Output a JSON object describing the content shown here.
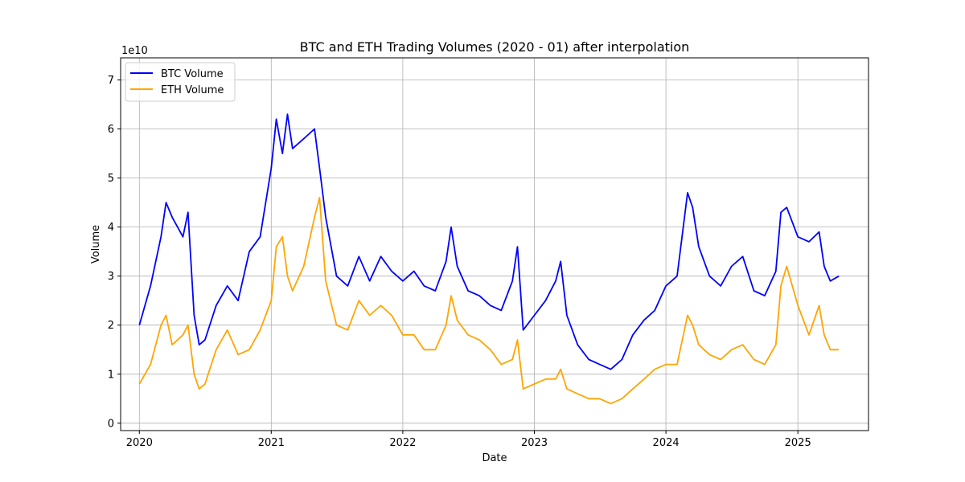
{
  "chart_data": {
    "type": "line",
    "title": "BTC and ETH Trading Volumes (2020 - 01) after interpolation",
    "xlabel": "Date",
    "ylabel": "Volume",
    "y_scale_label": "1e10",
    "x_range": [
      "2019-11-10",
      "2025-07-16"
    ],
    "ylim": [
      -0.15,
      7.45
    ],
    "y_units": "1e10",
    "x_ticks": [
      {
        "date": "2020-01-01",
        "label": "2020"
      },
      {
        "date": "2021-01-01",
        "label": "2021"
      },
      {
        "date": "2022-01-01",
        "label": "2022"
      },
      {
        "date": "2023-01-01",
        "label": "2023"
      },
      {
        "date": "2024-01-01",
        "label": "2024"
      },
      {
        "date": "2025-01-01",
        "label": "2025"
      }
    ],
    "y_ticks": [
      {
        "value": 0,
        "label": "0"
      },
      {
        "value": 1,
        "label": "1"
      },
      {
        "value": 2,
        "label": "2"
      },
      {
        "value": 3,
        "label": "3"
      },
      {
        "value": 4,
        "label": "4"
      },
      {
        "value": 5,
        "label": "5"
      },
      {
        "value": 6,
        "label": "6"
      },
      {
        "value": 7,
        "label": "7"
      }
    ],
    "grid": true,
    "legend_position": "top-left",
    "series": [
      {
        "name": "BTC Volume",
        "color": "#0000ff",
        "x": [
          "2020-01-01",
          "2020-02-01",
          "2020-03-01",
          "2020-03-15",
          "2020-04-01",
          "2020-05-01",
          "2020-05-15",
          "2020-06-01",
          "2020-06-15",
          "2020-07-01",
          "2020-08-01",
          "2020-09-01",
          "2020-10-01",
          "2020-11-01",
          "2020-12-01",
          "2021-01-01",
          "2021-01-15",
          "2021-02-01",
          "2021-02-15",
          "2021-03-01",
          "2021-04-01",
          "2021-05-01",
          "2021-05-15",
          "2021-06-01",
          "2021-07-01",
          "2021-08-01",
          "2021-09-01",
          "2021-10-01",
          "2021-11-01",
          "2021-12-01",
          "2022-01-01",
          "2022-02-01",
          "2022-03-01",
          "2022-04-01",
          "2022-05-01",
          "2022-05-15",
          "2022-06-01",
          "2022-07-01",
          "2022-08-01",
          "2022-09-01",
          "2022-10-01",
          "2022-11-01",
          "2022-11-15",
          "2022-12-01",
          "2023-01-01",
          "2023-02-01",
          "2023-03-01",
          "2023-03-15",
          "2023-04-01",
          "2023-05-01",
          "2023-06-01",
          "2023-07-01",
          "2023-08-01",
          "2023-09-01",
          "2023-10-01",
          "2023-11-01",
          "2023-12-01",
          "2024-01-01",
          "2024-02-01",
          "2024-03-01",
          "2024-03-15",
          "2024-04-01",
          "2024-05-01",
          "2024-06-01",
          "2024-07-01",
          "2024-08-01",
          "2024-09-01",
          "2024-10-01",
          "2024-11-01",
          "2024-11-15",
          "2024-12-01",
          "2025-01-01",
          "2025-02-01",
          "2025-03-01",
          "2025-03-15",
          "2025-04-01",
          "2025-04-25"
        ],
        "values": [
          2.0,
          2.8,
          3.8,
          4.5,
          4.2,
          3.8,
          4.3,
          2.2,
          1.6,
          1.7,
          2.4,
          2.8,
          2.5,
          3.5,
          3.8,
          5.2,
          6.2,
          5.5,
          6.3,
          5.6,
          5.8,
          6.0,
          5.2,
          4.2,
          3.0,
          2.8,
          3.4,
          2.9,
          3.4,
          3.1,
          2.9,
          3.1,
          2.8,
          2.7,
          3.3,
          4.0,
          3.2,
          2.7,
          2.6,
          2.4,
          2.3,
          2.9,
          3.6,
          1.9,
          2.2,
          2.5,
          2.9,
          3.3,
          2.2,
          1.6,
          1.3,
          1.2,
          1.1,
          1.3,
          1.8,
          2.1,
          2.3,
          2.8,
          3.0,
          4.7,
          4.4,
          3.6,
          3.0,
          2.8,
          3.2,
          3.4,
          2.7,
          2.6,
          3.1,
          4.3,
          4.4,
          3.8,
          3.7,
          3.9,
          3.2,
          2.9,
          3.0
        ]
      },
      {
        "name": "ETH Volume",
        "color": "#ffa500",
        "x": [
          "2020-01-01",
          "2020-02-01",
          "2020-03-01",
          "2020-03-15",
          "2020-04-01",
          "2020-05-01",
          "2020-05-15",
          "2020-06-01",
          "2020-06-15",
          "2020-07-01",
          "2020-08-01",
          "2020-09-01",
          "2020-10-01",
          "2020-11-01",
          "2020-12-01",
          "2021-01-01",
          "2021-01-15",
          "2021-02-01",
          "2021-02-15",
          "2021-03-01",
          "2021-04-01",
          "2021-05-01",
          "2021-05-15",
          "2021-06-01",
          "2021-07-01",
          "2021-08-01",
          "2021-09-01",
          "2021-10-01",
          "2021-11-01",
          "2021-12-01",
          "2022-01-01",
          "2022-02-01",
          "2022-03-01",
          "2022-04-01",
          "2022-05-01",
          "2022-05-15",
          "2022-06-01",
          "2022-07-01",
          "2022-08-01",
          "2022-09-01",
          "2022-10-01",
          "2022-11-01",
          "2022-11-15",
          "2022-12-01",
          "2023-01-01",
          "2023-02-01",
          "2023-03-01",
          "2023-03-15",
          "2023-04-01",
          "2023-05-01",
          "2023-06-01",
          "2023-07-01",
          "2023-08-01",
          "2023-09-01",
          "2023-10-01",
          "2023-11-01",
          "2023-12-01",
          "2024-01-01",
          "2024-02-01",
          "2024-03-01",
          "2024-03-15",
          "2024-04-01",
          "2024-05-01",
          "2024-06-01",
          "2024-07-01",
          "2024-08-01",
          "2024-09-01",
          "2024-10-01",
          "2024-11-01",
          "2024-11-15",
          "2024-12-01",
          "2025-01-01",
          "2025-02-01",
          "2025-03-01",
          "2025-03-15",
          "2025-04-01",
          "2025-04-25"
        ],
        "values": [
          0.8,
          1.2,
          2.0,
          2.2,
          1.6,
          1.8,
          2.0,
          1.0,
          0.7,
          0.8,
          1.5,
          1.9,
          1.4,
          1.5,
          1.9,
          2.5,
          3.6,
          3.8,
          3.0,
          2.7,
          3.2,
          4.2,
          4.6,
          2.9,
          2.0,
          1.9,
          2.5,
          2.2,
          2.4,
          2.2,
          1.8,
          1.8,
          1.5,
          1.5,
          2.0,
          2.6,
          2.1,
          1.8,
          1.7,
          1.5,
          1.2,
          1.3,
          1.7,
          0.7,
          0.8,
          0.9,
          0.9,
          1.1,
          0.7,
          0.6,
          0.5,
          0.5,
          0.4,
          0.5,
          0.7,
          0.9,
          1.1,
          1.2,
          1.2,
          2.2,
          2.0,
          1.6,
          1.4,
          1.3,
          1.5,
          1.6,
          1.3,
          1.2,
          1.6,
          2.8,
          3.2,
          2.4,
          1.8,
          2.4,
          1.8,
          1.5,
          1.5
        ]
      }
    ]
  }
}
